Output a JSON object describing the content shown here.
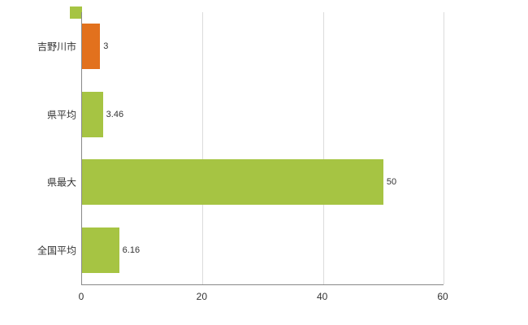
{
  "chart_data": {
    "type": "bar",
    "orientation": "horizontal",
    "title": "",
    "categories": [
      "吉野川市",
      "県平均",
      "県最大",
      "全国平均"
    ],
    "values": [
      3,
      3.46,
      50,
      6.16
    ],
    "value_labels": [
      "3",
      "3.46",
      "50",
      "6.16"
    ],
    "bar_colors": [
      "#e2711d",
      "#a6c443",
      "#a6c443",
      "#a6c443"
    ],
    "xlim": [
      0,
      60
    ],
    "x_ticks": [
      "0",
      "20",
      "40",
      "60"
    ],
    "x_tick_values": [
      0,
      20,
      40,
      60
    ],
    "grid": "vertical-gridlines-on",
    "legend_position": "top-left",
    "legend_swatch_color": "#a6c443"
  },
  "colors": {
    "axis": "#888888",
    "grid": "#dcdcdc",
    "background": "#ffffff",
    "text": "#333333"
  }
}
